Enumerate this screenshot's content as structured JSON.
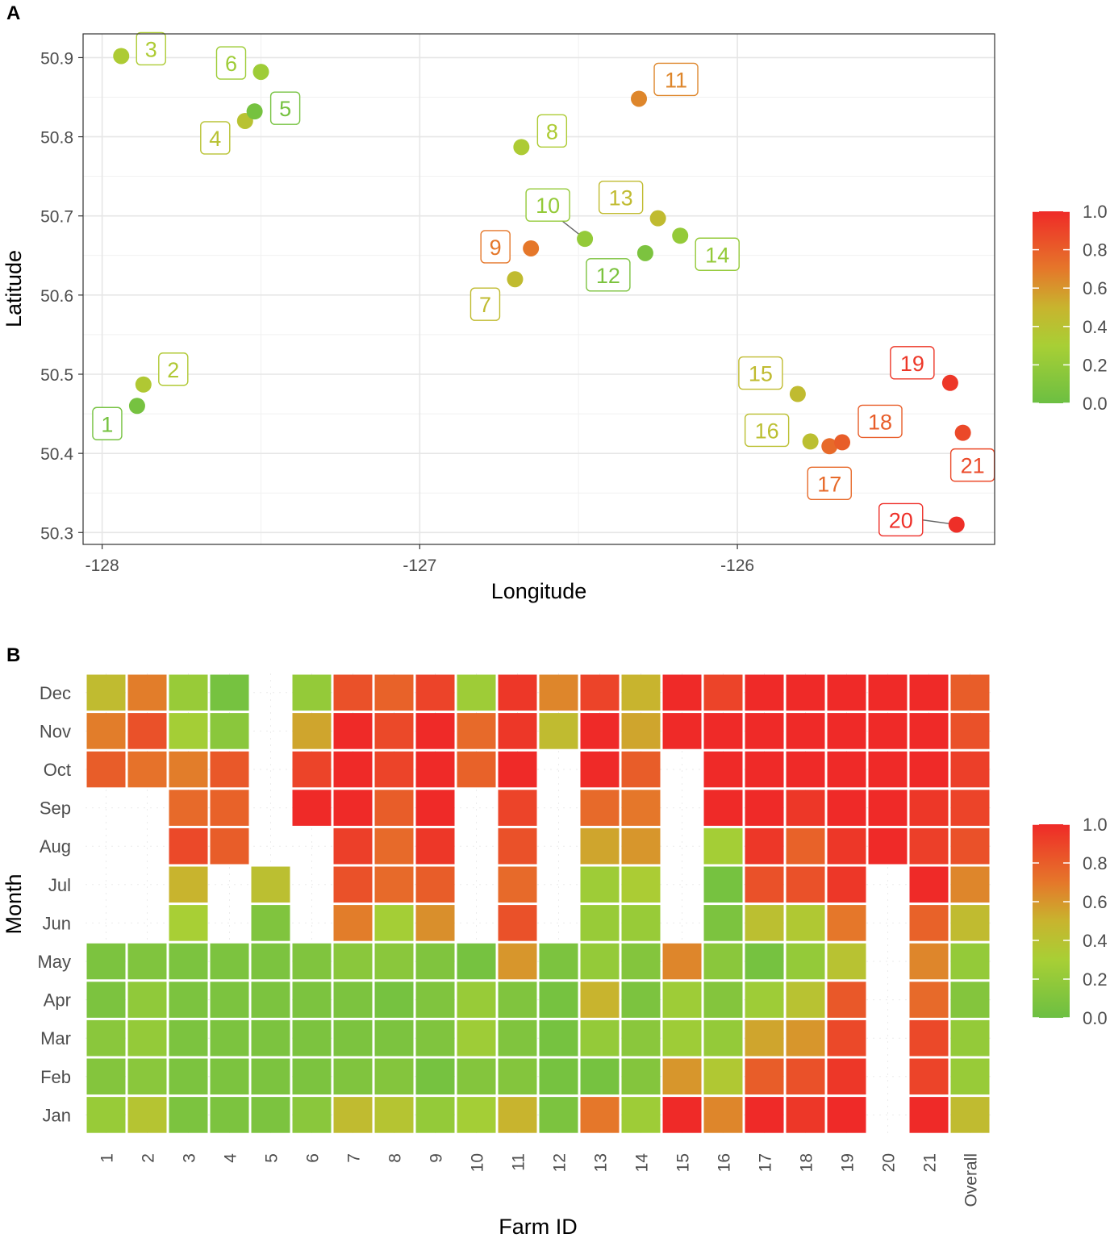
{
  "chart_data": [
    {
      "panel": "A",
      "type": "scatter",
      "xlabel": "Longitude",
      "ylabel": "Latitude",
      "xlim": [
        -128.06,
        -125.19
      ],
      "ylim": [
        50.285,
        50.93
      ],
      "xticks": [
        -128,
        -127,
        -126
      ],
      "xtick_labels": [
        "-128",
        "-127",
        "-126"
      ],
      "yticks": [
        50.3,
        50.4,
        50.5,
        50.6,
        50.7,
        50.8,
        50.9
      ],
      "ytick_labels": [
        "50.3",
        "50.4",
        "50.5",
        "50.6",
        "50.7",
        "50.8",
        "50.9"
      ],
      "grid": true,
      "color_scale": {
        "min": 0.0,
        "max": 1.0,
        "ticks": [
          "0.0",
          "0.2",
          "0.4",
          "0.6",
          "0.8",
          "1.0"
        ]
      },
      "points": [
        {
          "label": "1",
          "lon": -127.89,
          "lat": 50.46,
          "value": 0.05
        },
        {
          "label": "2",
          "lon": -127.87,
          "lat": 50.487,
          "value": 0.35
        },
        {
          "label": "3",
          "lon": -127.94,
          "lat": 50.902,
          "value": 0.33
        },
        {
          "label": "4",
          "lon": -127.55,
          "lat": 50.82,
          "value": 0.4
        },
        {
          "label": "5",
          "lon": -127.52,
          "lat": 50.832,
          "value": 0.05
        },
        {
          "label": "6",
          "lon": -127.5,
          "lat": 50.882,
          "value": 0.25
        },
        {
          "label": "7",
          "lon": -126.7,
          "lat": 50.62,
          "value": 0.45
        },
        {
          "label": "8",
          "lon": -126.68,
          "lat": 50.787,
          "value": 0.33
        },
        {
          "label": "9",
          "lon": -126.65,
          "lat": 50.659,
          "value": 0.7
        },
        {
          "label": "10",
          "lon": -126.48,
          "lat": 50.671,
          "value": 0.2
        },
        {
          "label": "11",
          "lon": -126.31,
          "lat": 50.848,
          "value": 0.65
        },
        {
          "label": "12",
          "lon": -126.29,
          "lat": 50.653,
          "value": 0.08
        },
        {
          "label": "13",
          "lon": -126.25,
          "lat": 50.697,
          "value": 0.45
        },
        {
          "label": "14",
          "lon": -126.18,
          "lat": 50.675,
          "value": 0.2
        },
        {
          "label": "15",
          "lon": -125.81,
          "lat": 50.475,
          "value": 0.45
        },
        {
          "label": "16",
          "lon": -125.77,
          "lat": 50.415,
          "value": 0.42
        },
        {
          "label": "17",
          "lon": -125.71,
          "lat": 50.409,
          "value": 0.75
        },
        {
          "label": "18",
          "lon": -125.67,
          "lat": 50.414,
          "value": 0.8
        },
        {
          "label": "19",
          "lon": -125.33,
          "lat": 50.489,
          "value": 0.95
        },
        {
          "label": "20",
          "lon": -125.31,
          "lat": 50.31,
          "value": 0.98
        },
        {
          "label": "21",
          "lon": -125.29,
          "lat": 50.426,
          "value": 0.88
        }
      ]
    },
    {
      "panel": "B",
      "type": "heatmap",
      "xlabel": "Farm ID",
      "ylabel": "Month",
      "categories": [
        "1",
        "2",
        "3",
        "4",
        "5",
        "6",
        "7",
        "8",
        "9",
        "10",
        "11",
        "12",
        "13",
        "14",
        "15",
        "16",
        "17",
        "18",
        "19",
        "20",
        "21",
        "Overall"
      ],
      "months": [
        "Dec",
        "Nov",
        "Oct",
        "Sep",
        "Aug",
        "Jul",
        "Jun",
        "May",
        "Apr",
        "Mar",
        "Feb",
        "Jan"
      ],
      "color_scale": {
        "min": 0.0,
        "max": 1.0,
        "ticks": [
          "0.0",
          "0.2",
          "0.4",
          "0.6",
          "0.8",
          "1.0"
        ]
      },
      "values": [
        [
          0.45,
          0.68,
          0.22,
          0.05,
          null,
          0.2,
          0.85,
          0.78,
          0.9,
          0.25,
          0.95,
          0.65,
          0.9,
          0.5,
          1.0,
          0.9,
          1.0,
          1.0,
          1.0,
          1.0,
          1.0,
          0.8
        ],
        [
          0.68,
          0.85,
          0.28,
          0.15,
          null,
          0.55,
          1.0,
          0.88,
          1.0,
          0.75,
          0.95,
          0.45,
          1.0,
          0.55,
          1.0,
          1.0,
          1.0,
          1.0,
          1.0,
          1.0,
          1.0,
          0.85
        ],
        [
          0.8,
          0.72,
          0.68,
          0.82,
          null,
          0.9,
          1.0,
          0.9,
          1.0,
          0.78,
          1.0,
          null,
          1.0,
          0.8,
          null,
          1.0,
          1.0,
          1.0,
          1.0,
          1.0,
          1.0,
          0.92
        ],
        [
          null,
          null,
          0.75,
          0.78,
          null,
          1.0,
          1.0,
          0.8,
          1.0,
          null,
          0.9,
          null,
          0.75,
          0.7,
          null,
          1.0,
          1.0,
          0.95,
          1.0,
          1.0,
          0.95,
          0.9
        ],
        [
          null,
          null,
          0.88,
          0.8,
          null,
          null,
          0.92,
          0.75,
          0.95,
          null,
          0.85,
          null,
          0.55,
          0.6,
          null,
          0.28,
          0.95,
          0.78,
          0.95,
          1.0,
          0.92,
          0.85
        ],
        [
          null,
          null,
          0.5,
          null,
          0.42,
          null,
          0.85,
          0.75,
          0.8,
          null,
          0.75,
          null,
          0.25,
          0.32,
          null,
          0.05,
          0.85,
          0.85,
          0.95,
          null,
          1.0,
          0.65
        ],
        [
          null,
          null,
          0.3,
          null,
          0.1,
          null,
          0.68,
          0.28,
          0.62,
          null,
          0.85,
          null,
          0.22,
          0.22,
          null,
          0.08,
          0.42,
          0.35,
          0.7,
          null,
          0.78,
          0.45
        ],
        [
          0.08,
          0.1,
          0.08,
          0.08,
          0.08,
          0.1,
          0.15,
          0.15,
          0.1,
          0.05,
          0.6,
          0.08,
          0.2,
          0.12,
          0.65,
          0.15,
          0.05,
          0.2,
          0.4,
          null,
          0.65,
          0.2
        ],
        [
          0.08,
          0.18,
          0.08,
          0.08,
          0.08,
          0.08,
          0.08,
          0.05,
          0.1,
          0.22,
          0.1,
          0.05,
          0.5,
          0.08,
          0.25,
          0.12,
          0.25,
          0.4,
          0.82,
          null,
          0.75,
          0.12
        ],
        [
          0.15,
          0.2,
          0.08,
          0.08,
          0.08,
          0.08,
          0.08,
          0.08,
          0.1,
          0.25,
          0.1,
          0.05,
          0.2,
          0.15,
          0.25,
          0.2,
          0.55,
          0.6,
          0.88,
          null,
          0.88,
          0.2
        ],
        [
          0.12,
          0.15,
          0.08,
          0.08,
          0.08,
          0.08,
          0.1,
          0.12,
          0.05,
          0.12,
          0.12,
          0.05,
          0.05,
          0.12,
          0.6,
          0.35,
          0.8,
          0.85,
          0.95,
          null,
          0.9,
          0.22
        ],
        [
          0.22,
          0.38,
          0.08,
          0.08,
          0.08,
          0.15,
          0.45,
          0.38,
          0.2,
          0.28,
          0.5,
          0.08,
          0.7,
          0.25,
          1.0,
          0.65,
          1.0,
          0.95,
          1.0,
          null,
          1.0,
          0.45
        ]
      ]
    }
  ],
  "panel_a_letter": "A",
  "panel_b_letter": "B"
}
